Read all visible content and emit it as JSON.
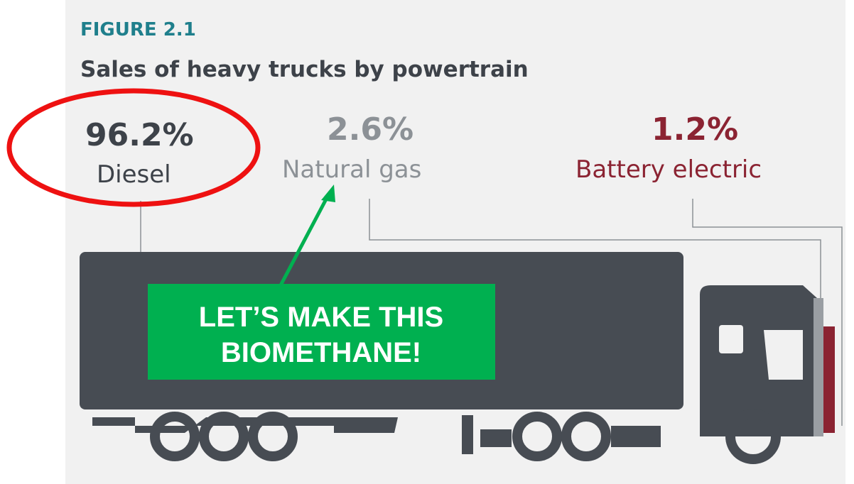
{
  "figure": {
    "label": "FIGURE 2.1",
    "title": "Sales of heavy trucks by powertrain"
  },
  "segments": [
    {
      "share": "96.2%",
      "name": "Diesel"
    },
    {
      "share": "2.6%",
      "name": "Natural gas"
    },
    {
      "share": "1.2%",
      "name": "Battery electric"
    }
  ],
  "annotation": {
    "callout": "LET’S MAKE THIS",
    "callout_line2": "BIOMETHANE!"
  }
}
